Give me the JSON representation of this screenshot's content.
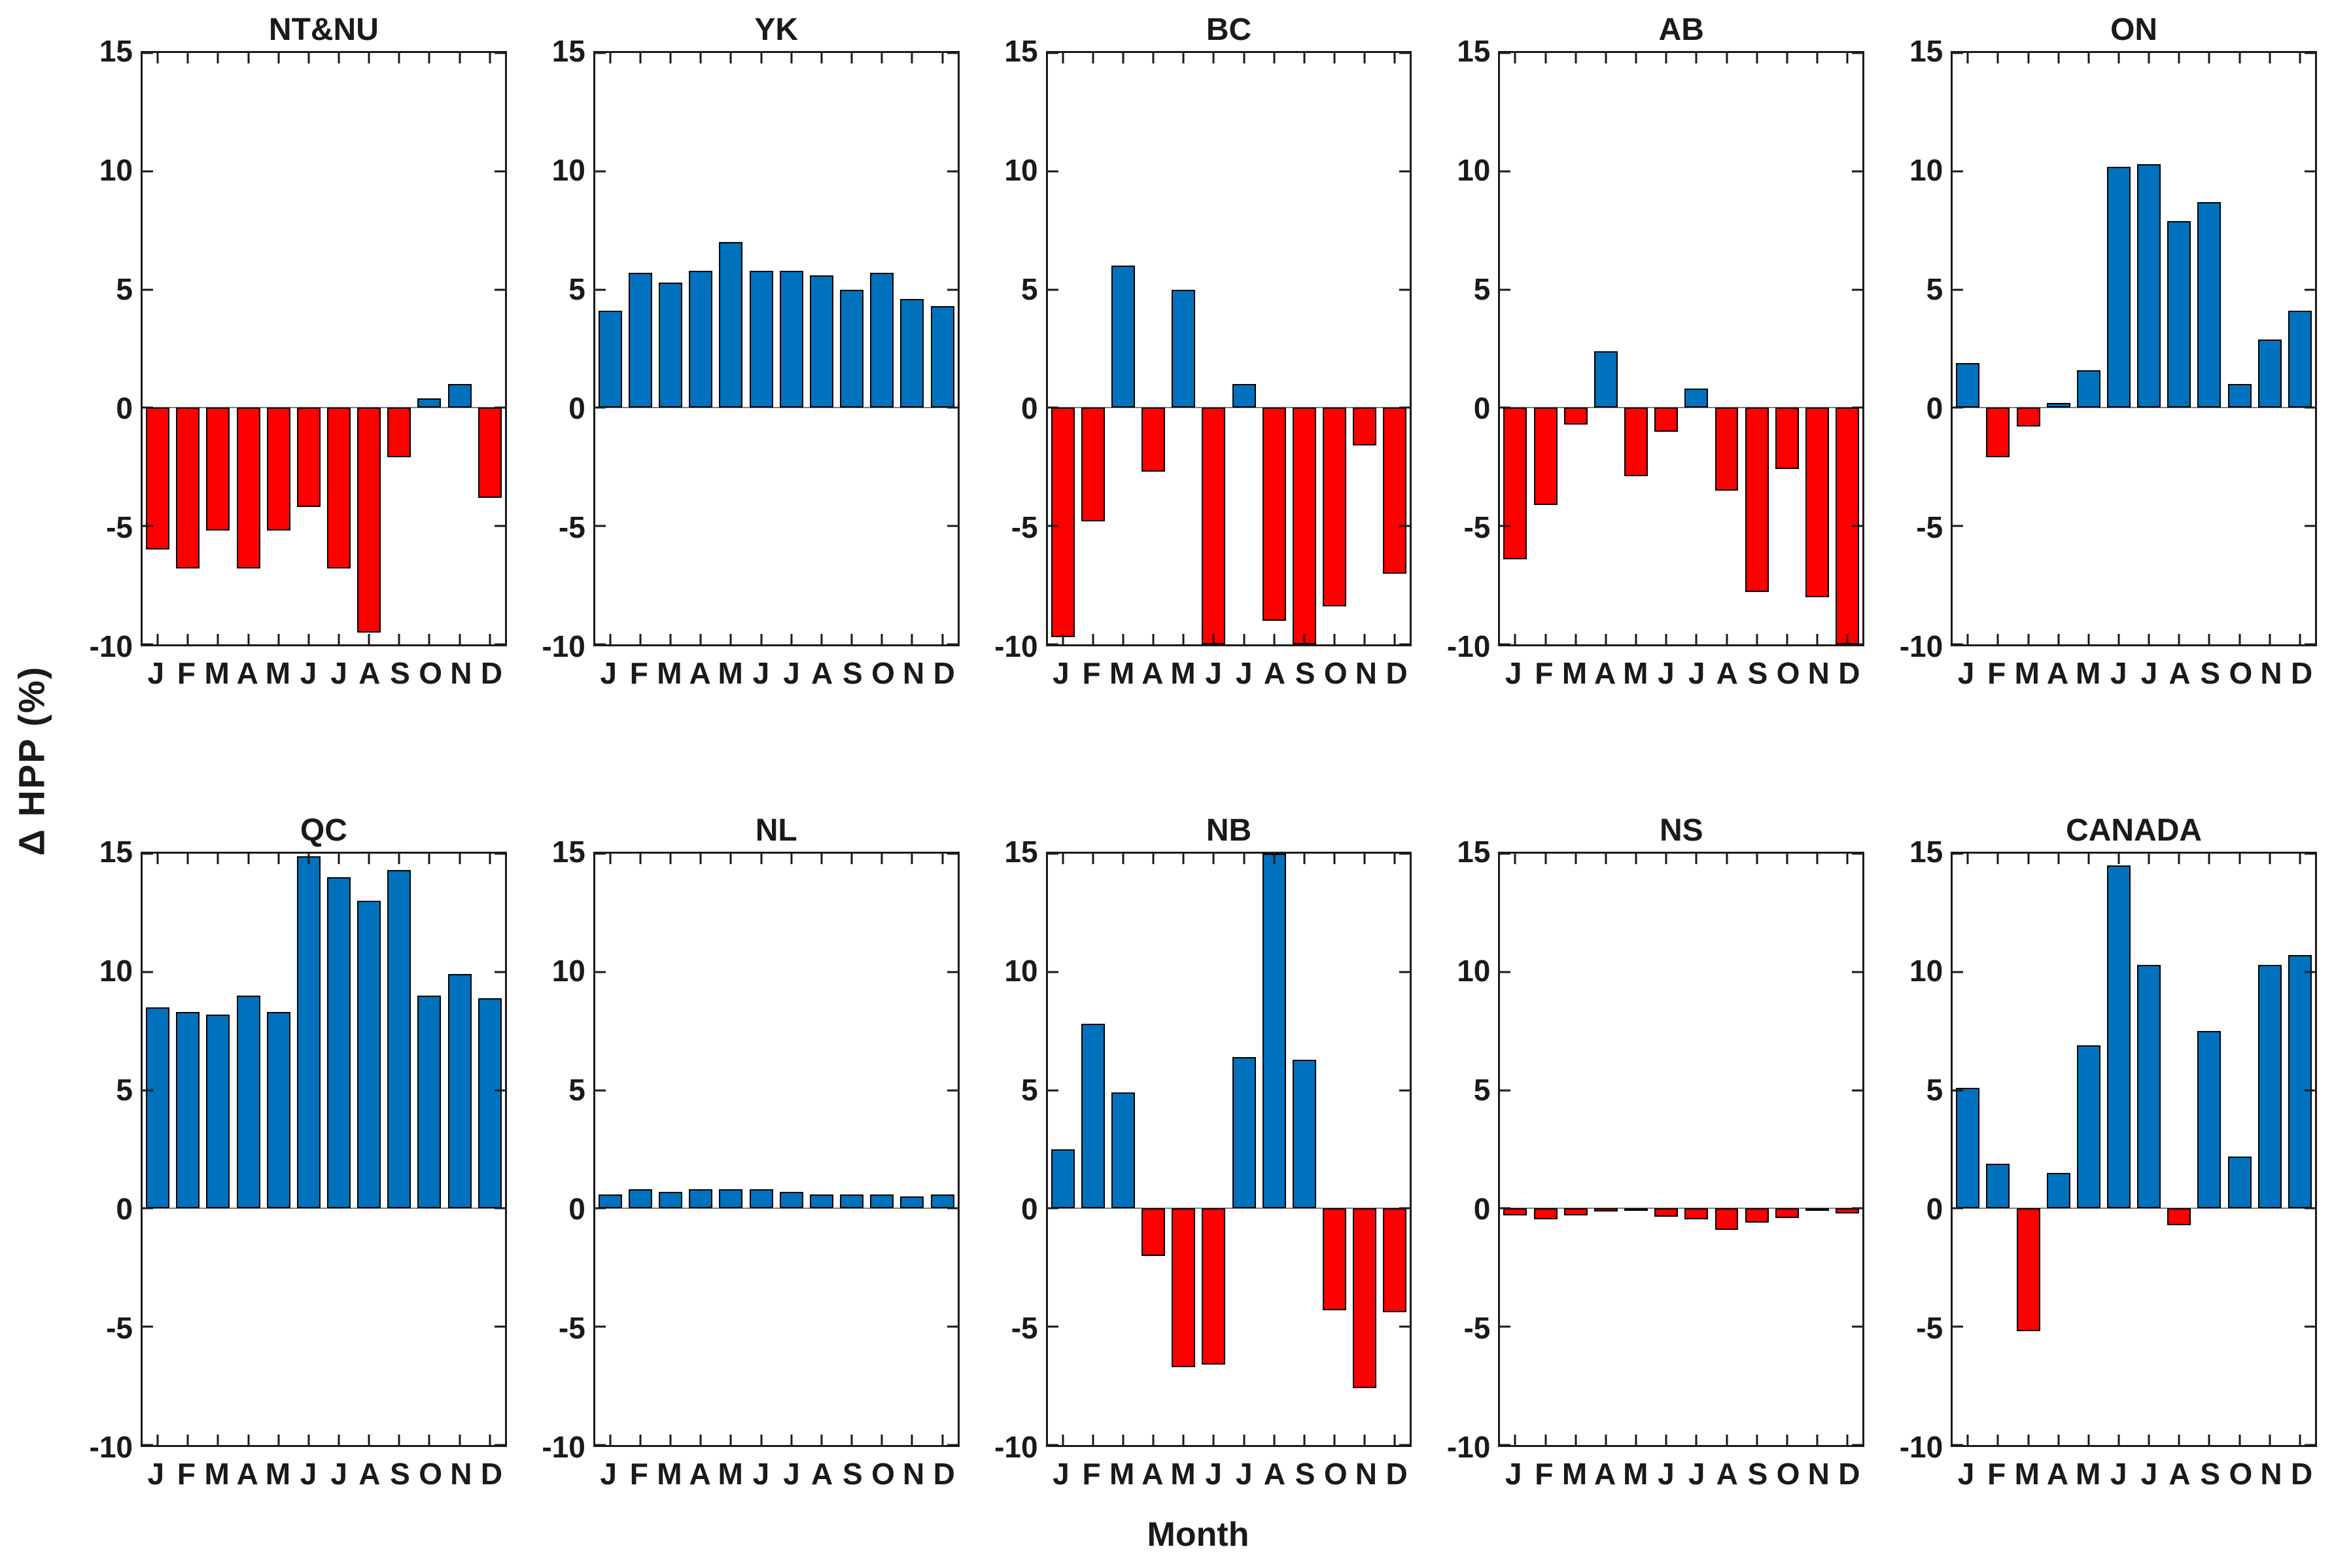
{
  "figure": {
    "ylabel": "Δ HPP (%)",
    "xlabel": "Month",
    "ylim": [
      -10,
      15
    ],
    "yticks": [
      15,
      10,
      5,
      0,
      -5,
      -10
    ],
    "month_letters": [
      "J",
      "F",
      "M",
      "A",
      "M",
      "J",
      "J",
      "A",
      "S",
      "O",
      "N",
      "D"
    ],
    "colors": {
      "positive": "#0072BD",
      "negative": "#FF0000",
      "bar_outline": "#000000",
      "axis": "#1A1A1A",
      "zero_line": "#808080",
      "background": "#FFFFFF"
    },
    "grid": "off",
    "layout": "2 rows x 5 columns of subplots"
  },
  "chart_data": [
    {
      "type": "bar",
      "title": "NT&NU",
      "categories": [
        "J",
        "F",
        "M",
        "A",
        "M",
        "J",
        "J",
        "A",
        "S",
        "O",
        "N",
        "D"
      ],
      "values": [
        -6.0,
        -6.8,
        -5.2,
        -6.8,
        -5.2,
        -4.2,
        -6.8,
        -9.5,
        -2.1,
        0.4,
        1.0,
        -3.8
      ],
      "ylim": [
        -10,
        15
      ],
      "color_rule": "blue if value >= 0 else red"
    },
    {
      "type": "bar",
      "title": "YK",
      "categories": [
        "J",
        "F",
        "M",
        "A",
        "M",
        "J",
        "J",
        "A",
        "S",
        "O",
        "N",
        "D"
      ],
      "values": [
        4.1,
        5.7,
        5.3,
        5.8,
        7.0,
        5.8,
        5.8,
        5.6,
        5.0,
        5.7,
        4.6,
        4.3
      ],
      "ylim": [
        -10,
        15
      ],
      "color_rule": "blue if value >= 0 else red"
    },
    {
      "type": "bar",
      "title": "BC",
      "categories": [
        "J",
        "F",
        "M",
        "A",
        "M",
        "J",
        "J",
        "A",
        "S",
        "O",
        "N",
        "D"
      ],
      "values": [
        -9.7,
        -4.8,
        6.0,
        -2.7,
        5.0,
        -10.0,
        1.0,
        -9.0,
        -10.0,
        -8.4,
        -1.6,
        -7.0
      ],
      "ylim": [
        -10,
        15
      ],
      "color_rule": "blue if value >= 0 else red"
    },
    {
      "type": "bar",
      "title": "AB",
      "categories": [
        "J",
        "F",
        "M",
        "A",
        "M",
        "J",
        "J",
        "A",
        "S",
        "O",
        "N",
        "D"
      ],
      "values": [
        -6.4,
        -4.1,
        -0.7,
        2.4,
        -2.9,
        -1.0,
        0.8,
        -3.5,
        -7.8,
        -2.6,
        -8.0,
        -10.0
      ],
      "ylim": [
        -10,
        15
      ],
      "color_rule": "blue if value >= 0 else red"
    },
    {
      "type": "bar",
      "title": "ON",
      "categories": [
        "J",
        "F",
        "M",
        "A",
        "M",
        "J",
        "J",
        "A",
        "S",
        "O",
        "N",
        "D"
      ],
      "values": [
        1.9,
        -2.1,
        -0.8,
        0.2,
        1.6,
        10.2,
        10.3,
        7.9,
        8.7,
        1.0,
        2.9,
        4.1
      ],
      "ylim": [
        -10,
        15
      ],
      "color_rule": "blue if value >= 0 else red"
    },
    {
      "type": "bar",
      "title": "QC",
      "categories": [
        "J",
        "F",
        "M",
        "A",
        "M",
        "J",
        "J",
        "A",
        "S",
        "O",
        "N",
        "D"
      ],
      "values": [
        8.5,
        8.3,
        8.2,
        9.0,
        8.3,
        14.9,
        14.0,
        13.0,
        14.3,
        9.0,
        9.9,
        8.9
      ],
      "ylim": [
        -10,
        15
      ],
      "color_rule": "blue if value >= 0 else red"
    },
    {
      "type": "bar",
      "title": "NL",
      "categories": [
        "J",
        "F",
        "M",
        "A",
        "M",
        "J",
        "J",
        "A",
        "S",
        "O",
        "N",
        "D"
      ],
      "values": [
        0.6,
        0.8,
        0.7,
        0.8,
        0.8,
        0.8,
        0.7,
        0.6,
        0.6,
        0.6,
        0.5,
        0.6
      ],
      "ylim": [
        -10,
        15
      ],
      "color_rule": "blue if value >= 0 else red"
    },
    {
      "type": "bar",
      "title": "NB",
      "categories": [
        "J",
        "F",
        "M",
        "A",
        "M",
        "J",
        "J",
        "A",
        "S",
        "O",
        "N",
        "D"
      ],
      "values": [
        2.5,
        7.8,
        4.9,
        -2.0,
        -6.7,
        -6.6,
        6.4,
        15.0,
        6.3,
        -4.3,
        -7.6,
        -4.4
      ],
      "ylim": [
        -10,
        15
      ],
      "color_rule": "blue if value >= 0 else red"
    },
    {
      "type": "bar",
      "title": "NS",
      "categories": [
        "J",
        "F",
        "M",
        "A",
        "M",
        "J",
        "J",
        "A",
        "S",
        "O",
        "N",
        "D"
      ],
      "values": [
        -0.3,
        -0.45,
        -0.3,
        -0.12,
        -0.05,
        -0.35,
        -0.45,
        -0.9,
        -0.6,
        -0.4,
        -0.05,
        -0.2
      ],
      "ylim": [
        -10,
        15
      ],
      "color_rule": "blue if value >= 0 else red"
    },
    {
      "type": "bar",
      "title": "CANADA",
      "categories": [
        "J",
        "F",
        "M",
        "A",
        "M",
        "J",
        "J",
        "A",
        "S",
        "O",
        "N",
        "D"
      ],
      "values": [
        5.1,
        1.9,
        -5.2,
        1.5,
        6.9,
        14.5,
        10.3,
        -0.7,
        7.5,
        2.2,
        10.3,
        10.7
      ],
      "ylim": [
        -10,
        15
      ],
      "color_rule": "blue if value >= 0 else red"
    }
  ]
}
